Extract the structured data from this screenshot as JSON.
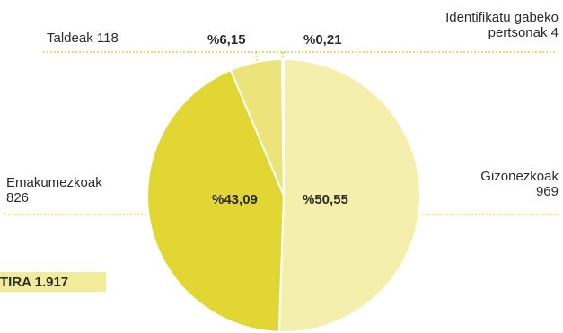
{
  "chart_data": {
    "type": "pie",
    "slices": [
      {
        "label_line1": "Gizonezkoak",
        "label_line2": "969",
        "count": 969,
        "percent_label": "%50,55",
        "color": "#f4efac"
      },
      {
        "label_line1": "Emakumezkoak",
        "label_line2": "826",
        "count": 826,
        "percent_label": "%43,09",
        "color": "#e2d635"
      },
      {
        "label_line1": "Taldeak 118",
        "label_line2": "",
        "count": 118,
        "percent_label": "%6,15",
        "color": "#ece47a"
      },
      {
        "label_line1": "Identifikatu gabeko",
        "label_line2": "pertsonak 4",
        "count": 4,
        "percent_label": "%0,21",
        "color": "#f8f4c8"
      }
    ],
    "total_label": "TIRA 1.917",
    "colors": {
      "leader": "#e0d23a",
      "separator": "#ffffff",
      "total_box": "#f2ec9a"
    }
  }
}
